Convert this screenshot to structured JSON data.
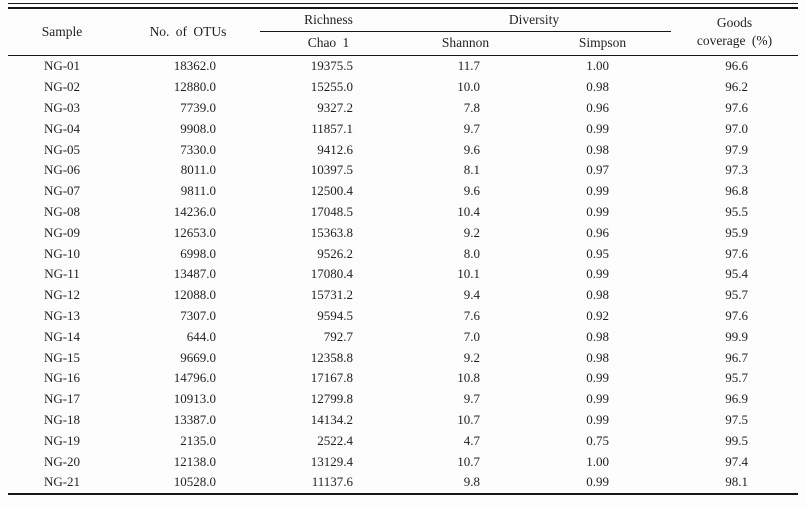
{
  "colors": {
    "text": "#1f1f1f",
    "rule": "#161616",
    "background": "#fdfdfd"
  },
  "table": {
    "header": {
      "sample": "Sample",
      "otus": "No. of OTUs",
      "richness_group": "Richness",
      "diversity_group": "Diversity",
      "goods_line1": "Goods",
      "goods_line2": "coverage (%)",
      "chao1": "Chao 1",
      "shannon": "Shannon",
      "simpson": "Simpson"
    },
    "column_keys": [
      "sample",
      "otus",
      "chao1",
      "shannon",
      "simpson",
      "coverage"
    ],
    "rows": [
      {
        "sample": "NG-01",
        "otus": "18362.0",
        "chao1": "19375.5",
        "shannon": "11.7",
        "simpson": "1.00",
        "coverage": "96.6"
      },
      {
        "sample": "NG-02",
        "otus": "12880.0",
        "chao1": "15255.0",
        "shannon": "10.0",
        "simpson": "0.98",
        "coverage": "96.2"
      },
      {
        "sample": "NG-03",
        "otus": "7739.0",
        "chao1": "9327.2",
        "shannon": "7.8",
        "simpson": "0.96",
        "coverage": "97.6"
      },
      {
        "sample": "NG-04",
        "otus": "9908.0",
        "chao1": "11857.1",
        "shannon": "9.7",
        "simpson": "0.99",
        "coverage": "97.0"
      },
      {
        "sample": "NG-05",
        "otus": "7330.0",
        "chao1": "9412.6",
        "shannon": "9.6",
        "simpson": "0.98",
        "coverage": "97.9"
      },
      {
        "sample": "NG-06",
        "otus": "8011.0",
        "chao1": "10397.5",
        "shannon": "8.1",
        "simpson": "0.97",
        "coverage": "97.3"
      },
      {
        "sample": "NG-07",
        "otus": "9811.0",
        "chao1": "12500.4",
        "shannon": "9.6",
        "simpson": "0.99",
        "coverage": "96.8"
      },
      {
        "sample": "NG-08",
        "otus": "14236.0",
        "chao1": "17048.5",
        "shannon": "10.4",
        "simpson": "0.99",
        "coverage": "95.5"
      },
      {
        "sample": "NG-09",
        "otus": "12653.0",
        "chao1": "15363.8",
        "shannon": "9.2",
        "simpson": "0.96",
        "coverage": "95.9"
      },
      {
        "sample": "NG-10",
        "otus": "6998.0",
        "chao1": "9526.2",
        "shannon": "8.0",
        "simpson": "0.95",
        "coverage": "97.6"
      },
      {
        "sample": "NG-11",
        "otus": "13487.0",
        "chao1": "17080.4",
        "shannon": "10.1",
        "simpson": "0.99",
        "coverage": "95.4"
      },
      {
        "sample": "NG-12",
        "otus": "12088.0",
        "chao1": "15731.2",
        "shannon": "9.4",
        "simpson": "0.98",
        "coverage": "95.7"
      },
      {
        "sample": "NG-13",
        "otus": "7307.0",
        "chao1": "9594.5",
        "shannon": "7.6",
        "simpson": "0.92",
        "coverage": "97.6"
      },
      {
        "sample": "NG-14",
        "otus": "644.0",
        "chao1": "792.7",
        "shannon": "7.0",
        "simpson": "0.98",
        "coverage": "99.9"
      },
      {
        "sample": "NG-15",
        "otus": "9669.0",
        "chao1": "12358.8",
        "shannon": "9.2",
        "simpson": "0.98",
        "coverage": "96.7"
      },
      {
        "sample": "NG-16",
        "otus": "14796.0",
        "chao1": "17167.8",
        "shannon": "10.8",
        "simpson": "0.99",
        "coverage": "95.7"
      },
      {
        "sample": "NG-17",
        "otus": "10913.0",
        "chao1": "12799.8",
        "shannon": "9.7",
        "simpson": "0.99",
        "coverage": "96.9"
      },
      {
        "sample": "NG-18",
        "otus": "13387.0",
        "chao1": "14134.2",
        "shannon": "10.7",
        "simpson": "0.99",
        "coverage": "97.5"
      },
      {
        "sample": "NG-19",
        "otus": "2135.0",
        "chao1": "2522.4",
        "shannon": "4.7",
        "simpson": "0.75",
        "coverage": "99.5"
      },
      {
        "sample": "NG-20",
        "otus": "12138.0",
        "chao1": "13129.4",
        "shannon": "10.7",
        "simpson": "1.00",
        "coverage": "97.4"
      },
      {
        "sample": "NG-21",
        "otus": "10528.0",
        "chao1": "11137.6",
        "shannon": "9.8",
        "simpson": "0.99",
        "coverage": "98.1"
      }
    ]
  }
}
